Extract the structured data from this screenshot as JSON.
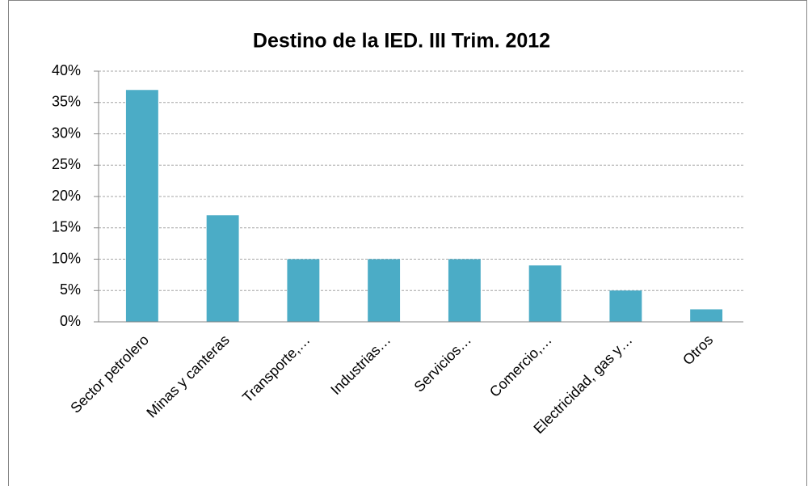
{
  "chart_data": {
    "type": "bar",
    "title": "Destino de la IED. III Trim. 2012",
    "categories": [
      "Sector petrolero",
      "Minas y canteras",
      "Transporte,…",
      "Industrias…",
      "Servicios…",
      "Comercio,…",
      "Electricidad, gas y…",
      "Otros"
    ],
    "values": [
      37,
      17,
      10,
      10,
      10,
      9,
      5,
      2
    ],
    "color": "#4bacc6",
    "ylim": [
      0,
      40
    ],
    "yticks": [
      {
        "value": 0,
        "label": "0%"
      },
      {
        "value": 5,
        "label": "5%"
      },
      {
        "value": 10,
        "label": "10%"
      },
      {
        "value": 15,
        "label": "15%"
      },
      {
        "value": 20,
        "label": "20%"
      },
      {
        "value": 25,
        "label": "25%"
      },
      {
        "value": 30,
        "label": "30%"
      },
      {
        "value": 35,
        "label": "35%"
      },
      {
        "value": 40,
        "label": "40%"
      }
    ],
    "grid": true
  }
}
